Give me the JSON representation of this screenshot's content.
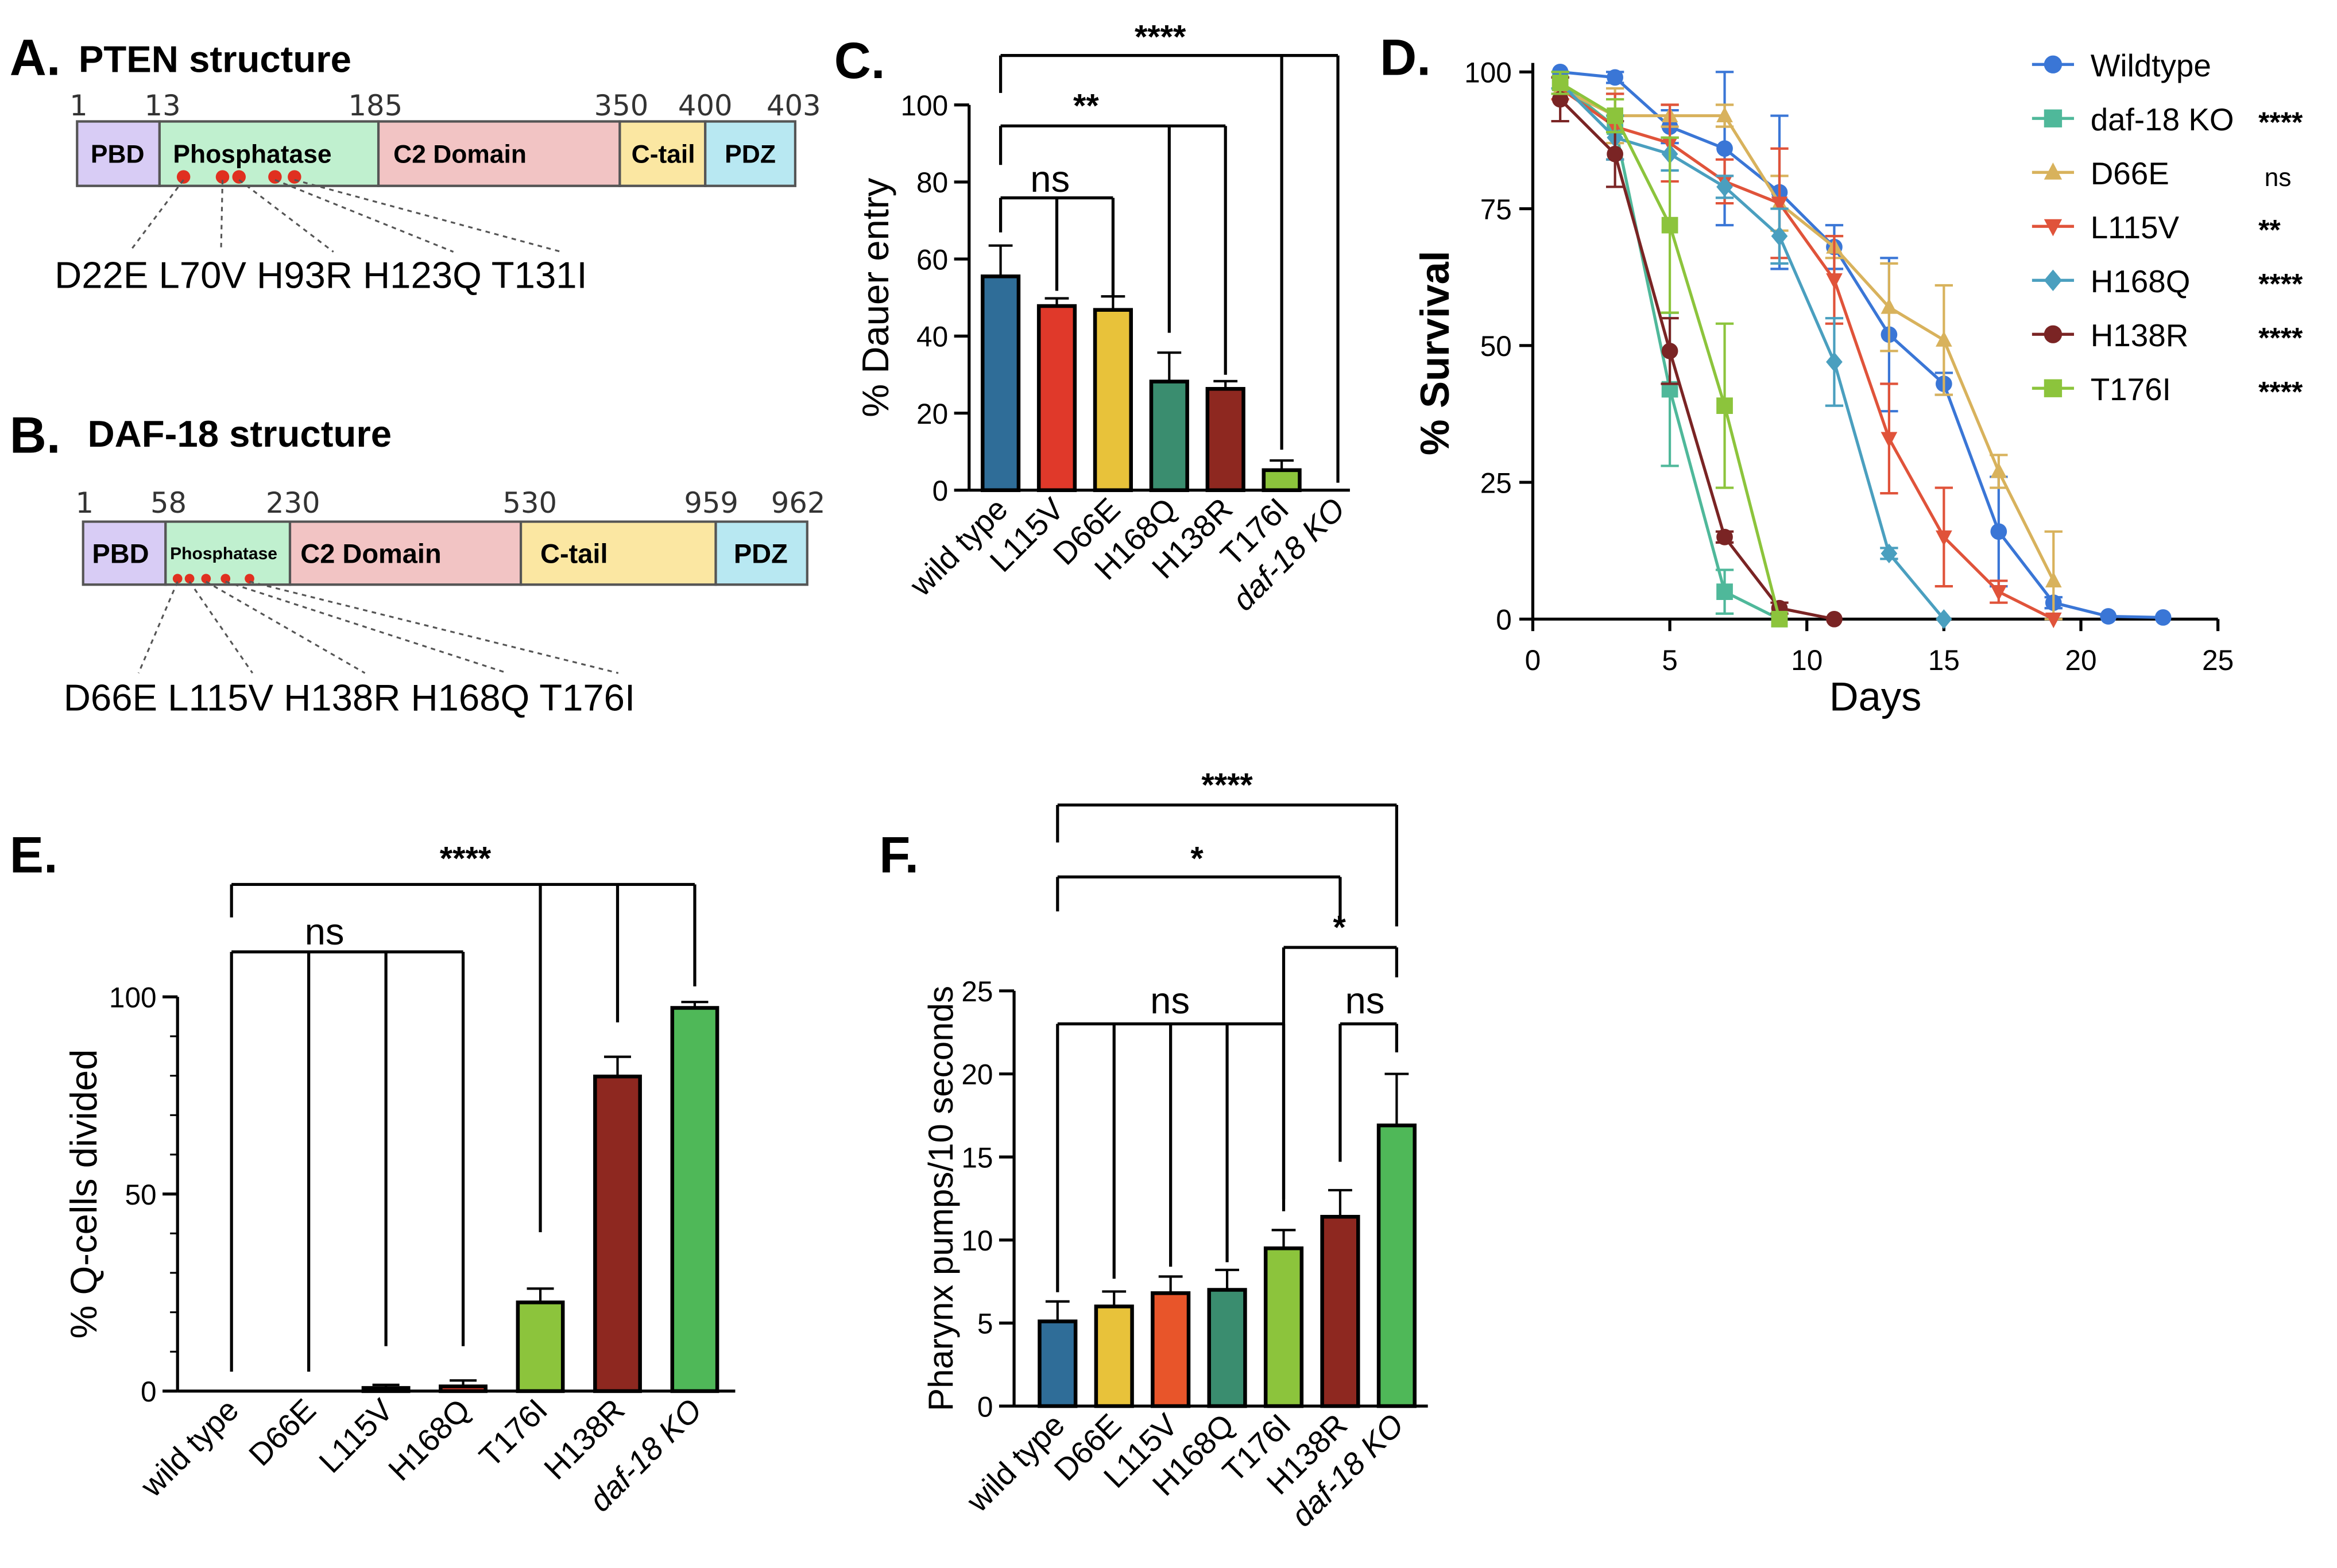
{
  "panelA": {
    "letter": "A.",
    "title": "PTEN structure",
    "positions": [
      "1",
      "13",
      "185",
      "350",
      "400",
      "403"
    ],
    "domains": [
      {
        "label": "PBD",
        "color": "#d8ccf5"
      },
      {
        "label": "Phosphatase",
        "color": "#c0f0cf"
      },
      {
        "label": "C2 Domain",
        "color": "#f2c4c4"
      },
      {
        "label": "C-tail",
        "color": "#fbe7a2"
      },
      {
        "label": "PDZ",
        "color": "#b8e8f2"
      }
    ],
    "mutations": "D22E L70V H93R H123Q T131I"
  },
  "panelB": {
    "letter": "B.",
    "title": "DAF-18 structure",
    "positions": [
      "1",
      "58",
      "230",
      "530",
      "959",
      "962"
    ],
    "domains": [
      {
        "label": "PBD",
        "color": "#d8ccf5"
      },
      {
        "label": "Phosphatase",
        "color": "#c0f0cf"
      },
      {
        "label": "C2 Domain",
        "color": "#f2c4c4"
      },
      {
        "label": "C-tail",
        "color": "#fbe7a2"
      },
      {
        "label": "PDZ",
        "color": "#b8e8f2"
      }
    ],
    "mutations": "D66E L115V H138R H168Q T176I"
  },
  "chart_data": [
    {
      "panel": "C.",
      "type": "bar",
      "ylabel": "% Dauer entry",
      "ylim": [
        0,
        100
      ],
      "yticks": [
        "0",
        "20",
        "40",
        "60",
        "80",
        "100"
      ],
      "categories": [
        "wild type",
        "L115V",
        "D66E",
        "H168Q",
        "H138R",
        "T176I",
        "daf-18 KO"
      ],
      "values": [
        55.5,
        47.8,
        46.8,
        28.2,
        26.3,
        5.2,
        0
      ],
      "errors": [
        8,
        2,
        3.5,
        7.5,
        2,
        2.5,
        0
      ],
      "colors": [
        "#2f6d98",
        "#e0392a",
        "#e8c23a",
        "#3a8d6f",
        "#8e2820",
        "#8cc43c",
        "#ffffff"
      ],
      "significance": [
        {
          "label": "****"
        },
        {
          "label": "**"
        },
        {
          "label": "ns"
        }
      ]
    },
    {
      "panel": "D.",
      "type": "line",
      "xlabel": "Days",
      "ylabel": "% Survival",
      "xlim": [
        0,
        25
      ],
      "ylim": [
        0,
        100
      ],
      "xticks": [
        "0",
        "5",
        "10",
        "15",
        "20",
        "25"
      ],
      "yticks": [
        "0",
        "25",
        "50",
        "75",
        "100"
      ],
      "legend": "right",
      "series": [
        {
          "name": "Wildtype",
          "sig": "",
          "color": "#3a76d6",
          "marker": "circle",
          "x": [
            1,
            3,
            5,
            7,
            9,
            11,
            13,
            15,
            17,
            19,
            21,
            23
          ],
          "y": [
            100,
            99,
            90,
            86,
            78,
            68,
            52,
            43,
            16,
            3,
            0.5,
            0.3
          ],
          "err": [
            1,
            1,
            3,
            14,
            14,
            4,
            14,
            2,
            10,
            1,
            0,
            0
          ]
        },
        {
          "name": "daf-18 KO",
          "sig": "****",
          "color": "#4fb89a",
          "marker": "square",
          "x": [
            1,
            3,
            5,
            7,
            9
          ],
          "y": [
            98,
            90,
            42,
            5,
            0
          ],
          "err": [
            2,
            6,
            14,
            4,
            0
          ]
        },
        {
          "name": "D66E",
          "sig": "ns",
          "color": "#d8b25c",
          "marker": "triangle-up",
          "x": [
            1,
            3,
            5,
            7,
            9,
            11,
            13,
            15,
            17,
            19
          ],
          "y": [
            97,
            92,
            92,
            92,
            76,
            68,
            57,
            51,
            27,
            7
          ],
          "err": [
            2,
            5,
            2,
            2,
            5,
            2,
            8,
            10,
            3,
            9
          ]
        },
        {
          "name": "L115V",
          "sig": "**",
          "color": "#e0533a",
          "marker": "triangle-down",
          "x": [
            1,
            3,
            5,
            7,
            9,
            11,
            13,
            15,
            17,
            19
          ],
          "y": [
            97,
            90,
            87,
            80,
            76,
            62,
            33,
            15,
            5,
            0
          ],
          "err": [
            2,
            6,
            7,
            4,
            10,
            8,
            10,
            9,
            2,
            0
          ]
        },
        {
          "name": "H168Q",
          "sig": "****",
          "color": "#4a9fbf",
          "marker": "diamond",
          "x": [
            1,
            3,
            5,
            7,
            9,
            11,
            13,
            15
          ],
          "y": [
            98,
            88,
            85,
            79,
            70,
            47,
            12,
            0
          ],
          "err": [
            1,
            4,
            3,
            2,
            5,
            8,
            1,
            0
          ]
        },
        {
          "name": "H138R",
          "sig": "****",
          "color": "#7a2424",
          "marker": "circle",
          "x": [
            1,
            3,
            5,
            7,
            9,
            11
          ],
          "y": [
            95,
            85,
            49,
            15,
            2,
            0
          ],
          "err": [
            4,
            6,
            6,
            1,
            1,
            0
          ]
        },
        {
          "name": "T176I",
          "sig": "****",
          "color": "#8cc43c",
          "marker": "square",
          "x": [
            1,
            3,
            5,
            7,
            9
          ],
          "y": [
            98,
            92,
            72,
            39,
            0
          ],
          "err": [
            2,
            3,
            16,
            15,
            0
          ]
        }
      ]
    },
    {
      "panel": "E.",
      "type": "bar",
      "ylabel": "% Q-cells divided",
      "ylim": [
        0,
        100
      ],
      "yticks": [
        "0",
        "50",
        "100"
      ],
      "categories": [
        "wild type",
        "D66E",
        "L115V",
        "H168Q",
        "T176I",
        "H138R",
        "daf-18 KO"
      ],
      "values": [
        0,
        0,
        0.8,
        1.2,
        22.5,
        79.8,
        97.2
      ],
      "errors": [
        0,
        0,
        0.8,
        1.5,
        3.5,
        5,
        1.5
      ],
      "colors": [
        "#2f6d98",
        "#e8c23a",
        "#e0392a",
        "#e0392a",
        "#8cc43c",
        "#8e2820",
        "#4fb858"
      ],
      "significance": [
        {
          "label": "****"
        },
        {
          "label": "ns"
        }
      ]
    },
    {
      "panel": "F.",
      "type": "bar",
      "ylabel": "Pharynx pumps/10 seconds",
      "ylim": [
        0,
        25
      ],
      "yticks": [
        "0",
        "5",
        "10",
        "15",
        "20",
        "25"
      ],
      "categories": [
        "wild type",
        "D66E",
        "L115V",
        "H168Q",
        "T176I",
        "H138R",
        "daf-18 KO"
      ],
      "values": [
        5.1,
        6.0,
        6.8,
        7.0,
        9.5,
        11.4,
        16.9
      ],
      "errors": [
        1.2,
        0.9,
        1.0,
        1.2,
        1.1,
        1.6,
        3.1
      ],
      "colors": [
        "#2f6d98",
        "#e8c23a",
        "#e8552a",
        "#3a8d6f",
        "#8cc43c",
        "#8e2820",
        "#4fb858"
      ],
      "significance": [
        {
          "label": "****"
        },
        {
          "label": "*"
        },
        {
          "label": "*"
        },
        {
          "label": "ns"
        },
        {
          "label": "ns"
        }
      ]
    }
  ]
}
